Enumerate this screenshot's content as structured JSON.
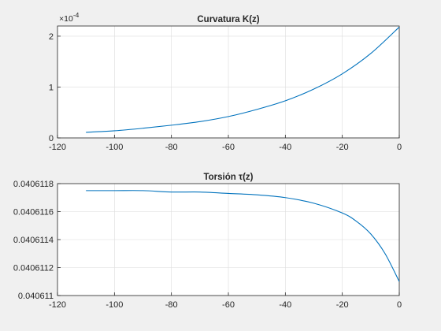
{
  "chart_data": [
    {
      "type": "line",
      "title": "Curvatura K(z)",
      "xlabel": "",
      "ylabel": "",
      "xlim": [
        -120,
        0
      ],
      "ylim": [
        0,
        2.2
      ],
      "exponent_label": "×10",
      "exponent_power": "-4",
      "x_ticks": [
        "-120",
        "-100",
        "-80",
        "-60",
        "-40",
        "-20",
        "0"
      ],
      "y_ticks": [
        "0",
        "1",
        "2"
      ],
      "grid": true,
      "color": "#0072BD",
      "series": [
        {
          "x": [
            -110,
            -100,
            -90,
            -80,
            -70,
            -60,
            -50,
            -40,
            -30,
            -20,
            -10,
            0
          ],
          "y": [
            0.11,
            0.14,
            0.19,
            0.25,
            0.32,
            0.42,
            0.56,
            0.73,
            0.96,
            1.26,
            1.66,
            2.18
          ]
        }
      ]
    },
    {
      "type": "line",
      "title": "Torsión τ(z)",
      "xlabel": "",
      "ylabel": "",
      "xlim": [
        -120,
        0
      ],
      "ylim": [
        0.040611,
        0.0406118
      ],
      "x_ticks": [
        "-120",
        "-100",
        "-80",
        "-60",
        "-40",
        "-20",
        "0"
      ],
      "y_ticks": [
        "0.040611",
        "0.0406112",
        "0.0406114",
        "0.0406116",
        "0.0406118"
      ],
      "grid": true,
      "color": "#0072BD",
      "series": [
        {
          "x": [
            -110,
            -100,
            -90,
            -80,
            -70,
            -60,
            -50,
            -40,
            -30,
            -20,
            -15,
            -10,
            -5,
            0
          ],
          "y": [
            0.04061175,
            0.04061175,
            0.04061175,
            0.04061174,
            0.04061174,
            0.04061173,
            0.04061172,
            0.0406117,
            0.04061166,
            0.04061159,
            0.04061153,
            0.04061144,
            0.0406113,
            0.0406111
          ]
        }
      ]
    }
  ]
}
